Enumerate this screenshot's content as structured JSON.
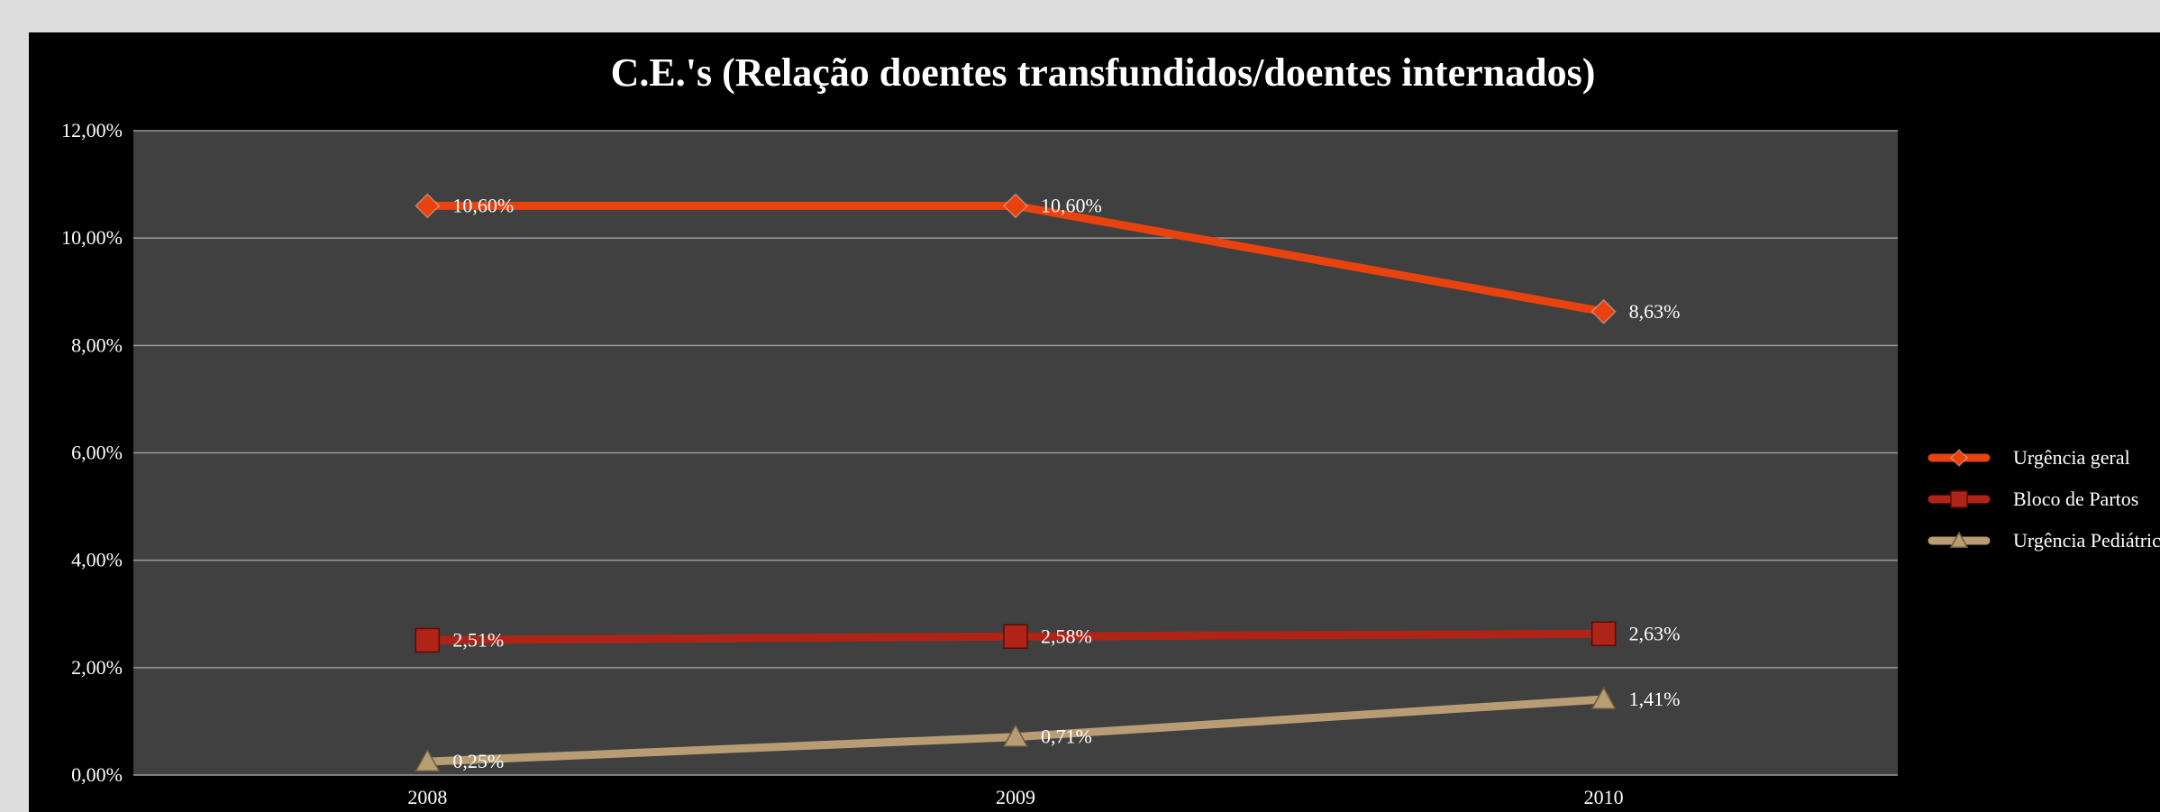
{
  "chart_data": {
    "type": "line",
    "title": "C.E.'s (Relação doentes transfundidos/doentes internados)",
    "xlabel": "",
    "ylabel": "",
    "categories": [
      "2008",
      "2009",
      "2010"
    ],
    "ylim": [
      0,
      12
    ],
    "y_ticks": [
      "0,00%",
      "2,00%",
      "4,00%",
      "6,00%",
      "8,00%",
      "10,00%",
      "12,00%"
    ],
    "grid": true,
    "legend_position": "right",
    "series": [
      {
        "name": "Urgência geral",
        "values": [
          10.6,
          10.6,
          8.63
        ],
        "labels": [
          "10,60%",
          "10,60%",
          "8,63%"
        ],
        "color": "#e8420f",
        "marker": "diamond"
      },
      {
        "name": "Bloco de Partos",
        "values": [
          2.51,
          2.58,
          2.63
        ],
        "labels": [
          "2,51%",
          "2,58%",
          "2,63%"
        ],
        "color": "#b02418",
        "marker": "square"
      },
      {
        "name": "Urgência Pediátrica",
        "values": [
          0.25,
          0.71,
          1.41
        ],
        "labels": [
          "0,25%",
          "0,71%",
          "1,41%"
        ],
        "color": "#b89c74",
        "marker": "triangle"
      }
    ],
    "colors": {
      "plot_background": "#404040",
      "gridline": "#9a9a9a",
      "frame_background": "#000000"
    }
  }
}
